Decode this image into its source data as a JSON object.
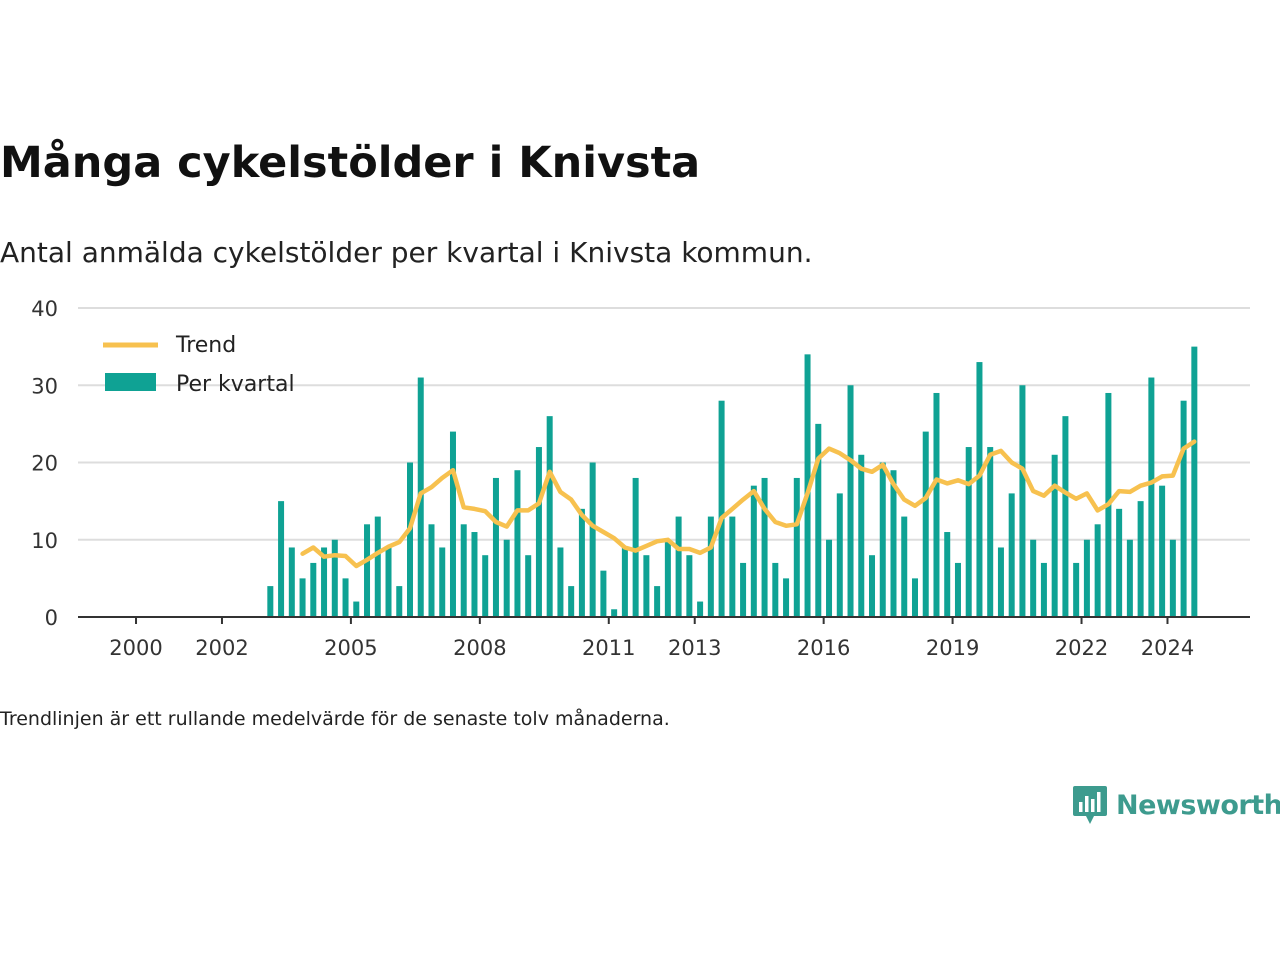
{
  "title": "Många cykelstölder i Knivsta",
  "subtitle": "Antal anmälda cykelstölder per kvartal i Knivsta kommun.",
  "note": "Trendlinjen är ett rullande medelvärde för de senaste tolv månaderna.",
  "logo_text": "Newsworthy",
  "colors": {
    "bar": "#0fa294",
    "trend": "#f7c14f",
    "grid": "#dddddd",
    "axis": "#333333",
    "logo": "#3d9b8e"
  },
  "chart_data": {
    "type": "bar",
    "legend": {
      "position": "top-left",
      "entries": [
        "Trend",
        "Per kvartal"
      ]
    },
    "yticks": [
      0,
      10,
      20,
      30,
      40
    ],
    "ylim": [
      0,
      40
    ],
    "xlim": [
      1998.65,
      2025.92
    ],
    "xticks": [
      "2000",
      "2002",
      "2005",
      "2008",
      "2011",
      "2013",
      "2016",
      "2019",
      "2022",
      "2024"
    ],
    "grid": true,
    "series": [
      {
        "name": "Per kvartal",
        "type": "bar",
        "x": [
          "2003-Q1",
          "2003-Q2",
          "2003-Q3",
          "2003-Q4",
          "2004-Q1",
          "2004-Q2",
          "2004-Q3",
          "2004-Q4",
          "2005-Q1",
          "2005-Q2",
          "2005-Q3",
          "2005-Q4",
          "2006-Q1",
          "2006-Q2",
          "2006-Q3",
          "2006-Q4",
          "2007-Q1",
          "2007-Q2",
          "2007-Q3",
          "2007-Q4",
          "2008-Q1",
          "2008-Q2",
          "2008-Q3",
          "2008-Q4",
          "2009-Q1",
          "2009-Q2",
          "2009-Q3",
          "2009-Q4",
          "2010-Q1",
          "2010-Q2",
          "2010-Q3",
          "2010-Q4",
          "2011-Q1",
          "2011-Q2",
          "2011-Q3",
          "2011-Q4",
          "2012-Q1",
          "2012-Q2",
          "2012-Q3",
          "2012-Q4",
          "2013-Q1",
          "2013-Q2",
          "2013-Q3",
          "2013-Q4",
          "2014-Q1",
          "2014-Q2",
          "2014-Q3",
          "2014-Q4",
          "2015-Q1",
          "2015-Q2",
          "2015-Q3",
          "2015-Q4",
          "2016-Q1",
          "2016-Q2",
          "2016-Q3",
          "2016-Q4",
          "2017-Q1",
          "2017-Q2",
          "2017-Q3",
          "2017-Q4",
          "2018-Q1",
          "2018-Q2",
          "2018-Q3",
          "2018-Q4",
          "2019-Q1",
          "2019-Q2",
          "2019-Q3",
          "2019-Q4",
          "2020-Q1",
          "2020-Q2",
          "2020-Q3",
          "2020-Q4",
          "2021-Q1",
          "2021-Q2",
          "2021-Q3",
          "2021-Q4",
          "2022-Q1",
          "2022-Q2",
          "2022-Q3",
          "2022-Q4",
          "2023-Q1",
          "2023-Q2",
          "2023-Q3",
          "2023-Q4",
          "2024-Q1",
          "2024-Q2",
          "2024-Q3",
          "2024-Q4"
        ],
        "values": [
          4,
          15,
          9,
          5,
          7,
          9,
          10,
          5,
          2,
          12,
          13,
          9,
          4,
          20,
          31,
          12,
          9,
          24,
          12,
          11,
          8,
          18,
          10,
          19,
          8,
          22,
          26,
          9,
          4,
          14,
          20,
          6,
          1,
          9,
          18,
          8,
          4,
          10,
          13,
          8,
          2,
          13,
          28,
          13,
          7,
          17,
          18,
          7,
          5,
          18,
          34,
          25,
          10,
          16,
          30,
          21,
          8,
          20,
          19,
          13,
          5,
          24,
          29,
          11,
          7,
          22,
          33,
          22,
          9,
          16,
          30,
          10,
          7,
          21,
          26,
          7,
          10,
          12,
          29,
          14,
          10,
          15,
          31,
          17,
          10,
          28,
          35,
          0
        ]
      },
      {
        "name": "Trend",
        "type": "line",
        "x": [
          "2003-Q4",
          "2004-Q1",
          "2004-Q2",
          "2004-Q3",
          "2004-Q4",
          "2005-Q1",
          "2005-Q2",
          "2005-Q3",
          "2005-Q4",
          "2006-Q1",
          "2006-Q2",
          "2006-Q3",
          "2006-Q4",
          "2007-Q1",
          "2007-Q2",
          "2007-Q3",
          "2007-Q4",
          "2008-Q1",
          "2008-Q2",
          "2008-Q3",
          "2008-Q4",
          "2009-Q1",
          "2009-Q2",
          "2009-Q3",
          "2009-Q4",
          "2010-Q1",
          "2010-Q2",
          "2010-Q3",
          "2010-Q4",
          "2011-Q1",
          "2011-Q2",
          "2011-Q3",
          "2011-Q4",
          "2012-Q1",
          "2012-Q2",
          "2012-Q3",
          "2012-Q4",
          "2013-Q1",
          "2013-Q2",
          "2013-Q3",
          "2013-Q4",
          "2014-Q1",
          "2014-Q2",
          "2014-Q3",
          "2014-Q4",
          "2015-Q1",
          "2015-Q2",
          "2015-Q3",
          "2015-Q4",
          "2016-Q1",
          "2016-Q2",
          "2016-Q3",
          "2016-Q4",
          "2017-Q1",
          "2017-Q2",
          "2017-Q3",
          "2017-Q4",
          "2018-Q1",
          "2018-Q2",
          "2018-Q3",
          "2018-Q4",
          "2019-Q1",
          "2019-Q2",
          "2019-Q3",
          "2019-Q4",
          "2020-Q1",
          "2020-Q2",
          "2020-Q3",
          "2020-Q4",
          "2021-Q1",
          "2021-Q2",
          "2021-Q3",
          "2021-Q4",
          "2022-Q1",
          "2022-Q2",
          "2022-Q3",
          "2022-Q4",
          "2023-Q1",
          "2023-Q2",
          "2023-Q3",
          "2023-Q4",
          "2024-Q1",
          "2024-Q2",
          "2024-Q3"
        ],
        "values": [
          8.2,
          9.0,
          7.8,
          8.0,
          7.9,
          6.6,
          7.4,
          8.3,
          9.1,
          9.7,
          11.5,
          16.0,
          16.8,
          18.0,
          19.0,
          14.2,
          14.0,
          13.7,
          12.3,
          11.7,
          13.8,
          13.8,
          14.7,
          18.8,
          16.2,
          15.2,
          13.2,
          11.8,
          11.0,
          10.2,
          9.0,
          8.6,
          9.2,
          9.8,
          10.0,
          8.8,
          8.8,
          8.3,
          9.0,
          12.8,
          14.0,
          15.2,
          16.3,
          14.0,
          12.3,
          11.8,
          12.0,
          16.0,
          20.5,
          21.8,
          21.2,
          20.3,
          19.2,
          18.8,
          19.7,
          17.2,
          15.2,
          14.4,
          15.4,
          17.8,
          17.3,
          17.7,
          17.2,
          18.3,
          21.0,
          21.5,
          20.0,
          19.2,
          16.3,
          15.7,
          17.0,
          16.1,
          15.3,
          16.0,
          13.8,
          14.6,
          16.3,
          16.2,
          17.0,
          17.4,
          18.2,
          18.3,
          21.8,
          22.7
        ]
      }
    ]
  }
}
